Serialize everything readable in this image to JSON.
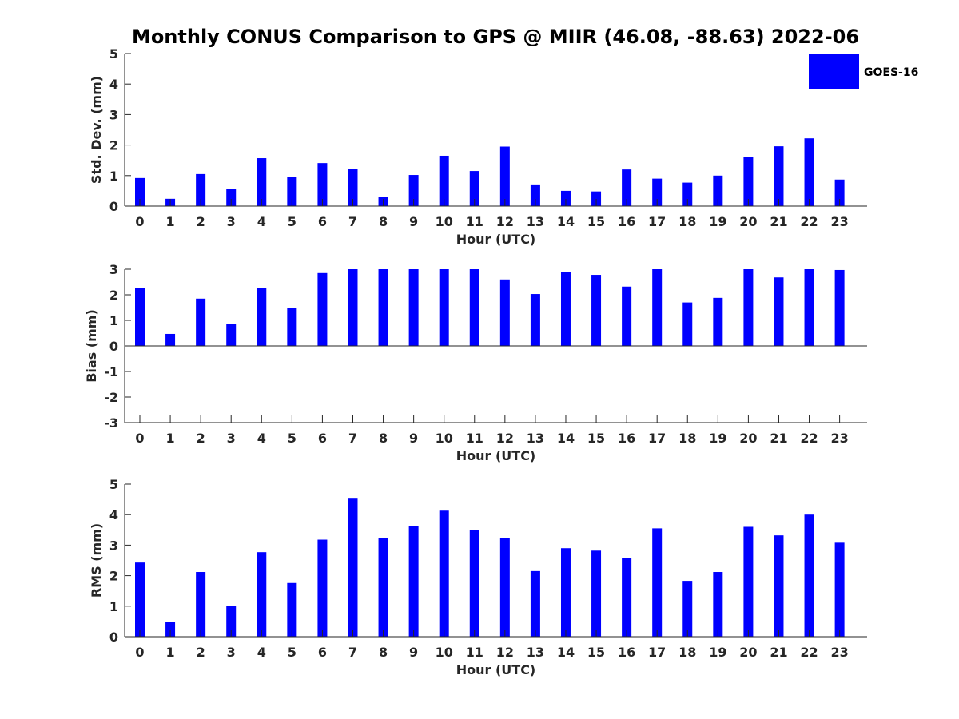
{
  "chart_data": [
    {
      "type": "bar",
      "title": "Monthly CONUS Comparison to GPS @ MIIR (46.08, -88.63) 2022-06",
      "xlabel": "Hour (UTC)",
      "ylabel": "Std. Dev. (mm)",
      "ylim": [
        0,
        5
      ],
      "yticks": [
        "0",
        "1",
        "2",
        "3",
        "4",
        "5"
      ],
      "categories": [
        "0",
        "1",
        "2",
        "3",
        "4",
        "5",
        "6",
        "7",
        "8",
        "9",
        "10",
        "11",
        "12",
        "13",
        "14",
        "15",
        "16",
        "17",
        "18",
        "19",
        "20",
        "21",
        "22",
        "23"
      ],
      "series": [
        {
          "name": "GOES-16",
          "color": "#0000ff",
          "values": [
            0.92,
            0.24,
            1.05,
            0.56,
            1.57,
            0.95,
            1.41,
            1.23,
            0.3,
            1.02,
            1.65,
            1.15,
            1.95,
            0.71,
            0.5,
            0.48,
            1.2,
            0.9,
            0.77,
            1.0,
            1.62,
            1.96,
            2.22,
            0.87
          ]
        }
      ],
      "legend": {
        "entries": [
          "GOES-16"
        ],
        "location": "top-right"
      }
    },
    {
      "type": "bar",
      "xlabel": "Hour (UTC)",
      "ylabel": "Bias (mm)",
      "ylim": [
        -3,
        3
      ],
      "yticks": [
        "-3",
        "-2",
        "-1",
        "0",
        "1",
        "2",
        "3"
      ],
      "categories": [
        "0",
        "1",
        "2",
        "3",
        "4",
        "5",
        "6",
        "7",
        "8",
        "9",
        "10",
        "11",
        "12",
        "13",
        "14",
        "15",
        "16",
        "17",
        "18",
        "19",
        "20",
        "21",
        "22",
        "23"
      ],
      "series": [
        {
          "name": "GOES-16",
          "color": "#0000ff",
          "values": [
            2.25,
            0.47,
            1.85,
            0.85,
            2.28,
            1.48,
            2.85,
            3.0,
            3.0,
            3.0,
            3.0,
            3.0,
            2.6,
            2.03,
            2.88,
            2.78,
            2.32,
            3.0,
            1.7,
            1.88,
            3.0,
            2.68,
            3.0,
            2.97
          ]
        }
      ]
    },
    {
      "type": "bar",
      "xlabel": "Hour (UTC)",
      "ylabel": "RMS (mm)",
      "ylim": [
        0,
        5
      ],
      "yticks": [
        "0",
        "1",
        "2",
        "3",
        "4",
        "5"
      ],
      "categories": [
        "0",
        "1",
        "2",
        "3",
        "4",
        "5",
        "6",
        "7",
        "8",
        "9",
        "10",
        "11",
        "12",
        "13",
        "14",
        "15",
        "16",
        "17",
        "18",
        "19",
        "20",
        "21",
        "22",
        "23"
      ],
      "series": [
        {
          "name": "GOES-16",
          "color": "#0000ff",
          "values": [
            2.43,
            0.48,
            2.12,
            1.0,
            2.77,
            1.76,
            3.18,
            4.55,
            3.24,
            3.63,
            4.13,
            3.5,
            3.24,
            2.15,
            2.9,
            2.82,
            2.58,
            3.55,
            1.83,
            2.12,
            3.6,
            3.32,
            4.0,
            3.08
          ]
        }
      ]
    }
  ]
}
